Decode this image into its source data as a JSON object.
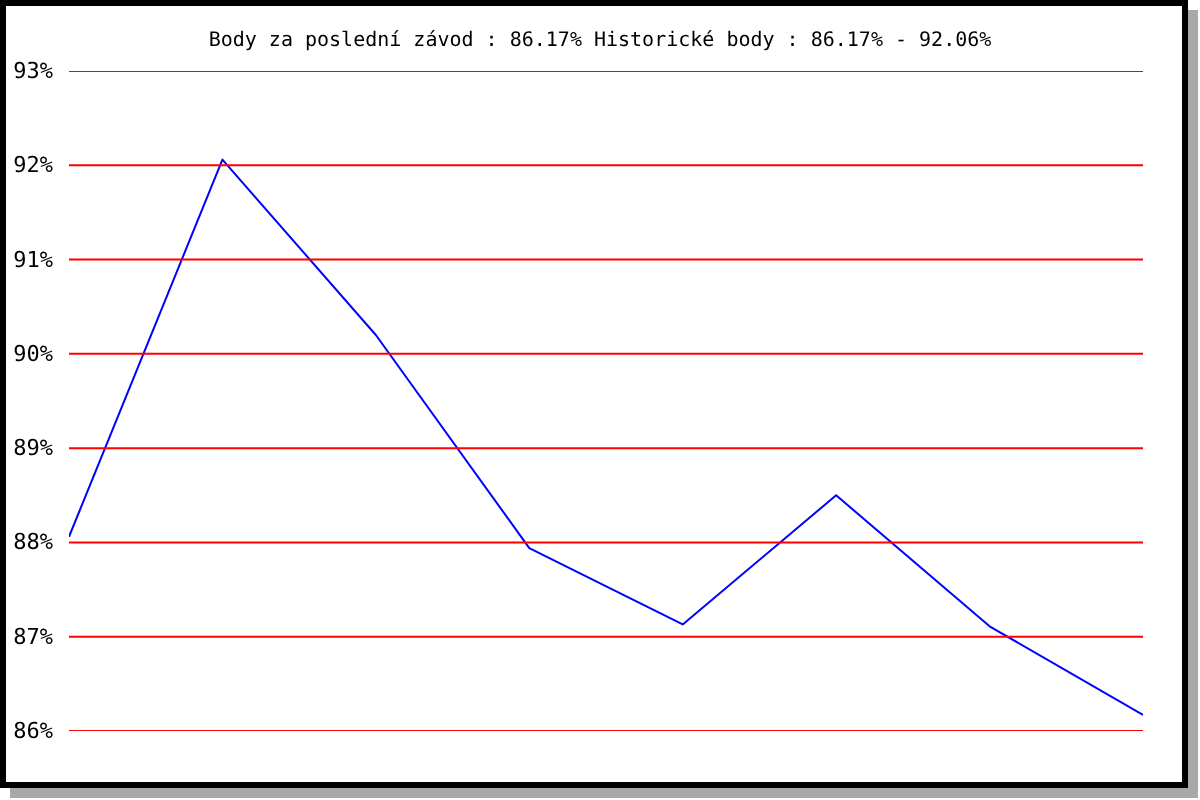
{
  "chart_data": {
    "type": "line",
    "title": "Body za poslední závod : 86.17%  Historické body : 86.17% - 92.06%",
    "categories": [
      null,
      null,
      null,
      null,
      null,
      null,
      null,
      null
    ],
    "series": [
      {
        "color": "#0000ff",
        "values": [
          88.06,
          92.06,
          90.2,
          87.94,
          87.13,
          88.5,
          87.11,
          86.17
        ]
      }
    ],
    "ylim": [
      86,
      93
    ],
    "yticks": [
      {
        "value": 86,
        "label": "86%"
      },
      {
        "value": 87,
        "label": "87%"
      },
      {
        "value": 88,
        "label": "88%"
      },
      {
        "value": 89,
        "label": "89%"
      },
      {
        "value": 90,
        "label": "90%"
      },
      {
        "value": 91,
        "label": "91%"
      },
      {
        "value": 92,
        "label": "92%"
      },
      {
        "value": 93,
        "label": "93%"
      }
    ],
    "grid": "y",
    "tick_labels": "y"
  }
}
